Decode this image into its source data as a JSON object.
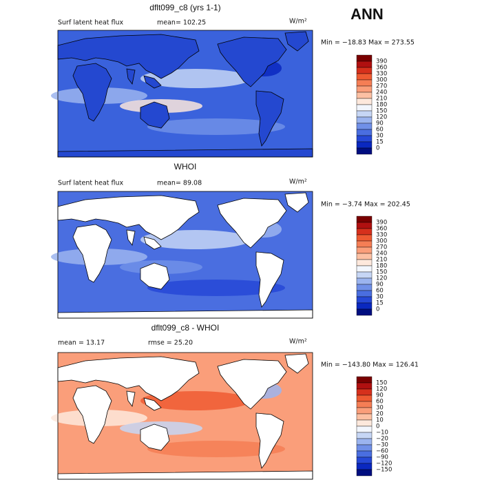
{
  "title": "ANN",
  "colorbar_colors": [
    "#7a0000",
    "#b01010",
    "#d6301c",
    "#ee5a32",
    "#f57e55",
    "#fa9e7a",
    "#fcc0a3",
    "#fde8dc",
    "#f2f6fd",
    "#c6d6f5",
    "#9bb4ef",
    "#7090e8",
    "#4a6ee0",
    "#2648d6",
    "#0a28c0",
    "#000e80"
  ],
  "panels": [
    {
      "title": "dflt099_c8 (yrs 1-1)",
      "left_label": "Surf latent heat flux",
      "stat": "mean= 102.25",
      "units": "W/m²",
      "range": "Min = −18.83 Max = 273.55",
      "colorbar_labels": [
        "390",
        "360",
        "330",
        "300",
        "270",
        "240",
        "210",
        "180",
        "150",
        "120",
        "90",
        "60",
        "30",
        "15",
        "0"
      ]
    },
    {
      "title": "WHOI",
      "left_label": "Surf latent heat flux",
      "stat": "mean=  89.08",
      "units": "W/m²",
      "range": "Min =  −3.74 Max = 202.45",
      "colorbar_labels": [
        "390",
        "360",
        "330",
        "300",
        "270",
        "240",
        "210",
        "180",
        "150",
        "120",
        "90",
        "60",
        "30",
        "15",
        "0"
      ]
    },
    {
      "title": "dflt099_c8 - WHOI",
      "left_label": "mean =  13.17",
      "stat": "rmse =  25.20",
      "units": "W/m²",
      "range": "Min = −143.80 Max = 126.41",
      "colorbar_labels": [
        "150",
        "120",
        "90",
        "60",
        "30",
        "20",
        "10",
        "0",
        "−10",
        "−20",
        "−30",
        "−60",
        "−90",
        "−120",
        "−150"
      ]
    }
  ]
}
